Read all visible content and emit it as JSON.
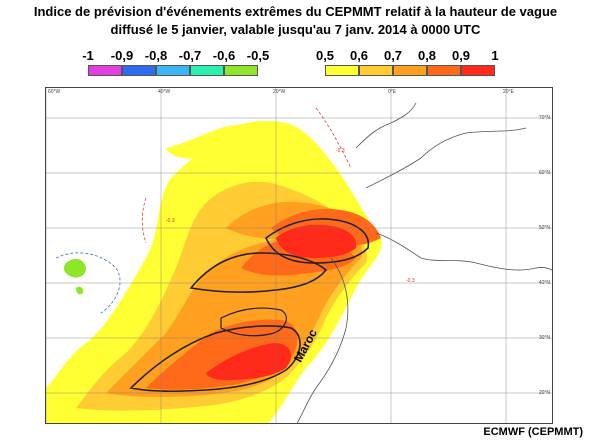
{
  "header": {
    "title_line1": "Indice de prévision d'événements extrêmes du CEPMMT relatif à la hauteur de vague",
    "title_line2": "diffusé le 5 janvier, valable jusqu'au 7 janv. 2014 à 0000 UTC"
  },
  "legend_negative": {
    "labels": [
      "-1",
      "-0,9",
      "-0,8",
      "-0,7",
      "-0,6",
      "-0,5"
    ],
    "colors": [
      "#e23ee2",
      "#2f6bf0",
      "#3ab6f5",
      "#2cf0b0",
      "#8fe52a"
    ]
  },
  "legend_positive": {
    "labels": [
      "0,5",
      "0,6",
      "0,7",
      "0,8",
      "0,9",
      "1"
    ],
    "colors": [
      "#ffff33",
      "#ffcc33",
      "#ffa020",
      "#ff6a1a",
      "#ff2a1a"
    ]
  },
  "map": {
    "country_label": "Maroc",
    "lon_ticks": [
      "60°W",
      "40°W",
      "20°W",
      "0°E",
      "20°E"
    ],
    "lat_ticks": [
      "70°N",
      "60°N",
      "50°N",
      "40°N",
      "30°N",
      "20°N"
    ],
    "contour_labels": [
      "-0.3",
      "-0.3",
      "-0.3"
    ]
  },
  "footer": {
    "credit": "ECMWF (CEPMMT)"
  }
}
